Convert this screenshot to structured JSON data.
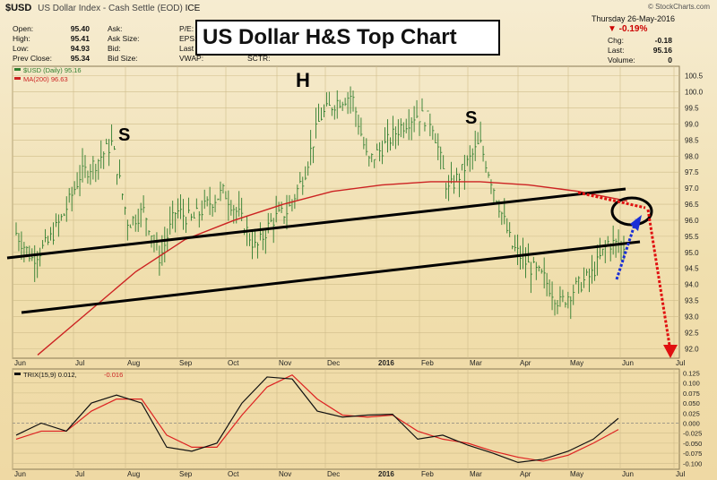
{
  "header": {
    "symbol": "$USD",
    "name": "US Dollar Index - Cash Settle (EOD)",
    "exchange": "ICE",
    "watermark": "© StockCharts.com",
    "date": "Thursday 26-May-2016",
    "change_pct": "▼ -0.19%",
    "quote_left": [
      {
        "label": "Open:",
        "value": "95.40"
      },
      {
        "label": "High:",
        "value": "95.41"
      },
      {
        "label": "Low:",
        "value": "94.93"
      },
      {
        "label": "Prev Close:",
        "value": "95.34"
      }
    ],
    "quote_mid": [
      "Ask:",
      "Ask Size:",
      "Bid:",
      "Bid Size:"
    ],
    "quote_mid2": [
      "P/E:",
      "EPS:",
      "Last",
      "VWAP:"
    ],
    "quote_mid3": [
      "",
      "",
      "",
      "SCTR:"
    ],
    "quote_right": [
      {
        "label": "Chg:",
        "value": "-0.18"
      },
      {
        "label": "Last:",
        "value": "95.16"
      },
      {
        "label": "Volume:",
        "value": "0"
      }
    ],
    "colors": {
      "up": "#1f7a1f",
      "down": "#cc0000",
      "accent": "#cc0000"
    }
  },
  "chart_data": [
    {
      "type": "line",
      "title": "US Dollar H&S Top Chart",
      "legend": [
        {
          "name": "$USD (Daily) 95.16",
          "color": "#2e7d2e"
        },
        {
          "name": "MA(200) 96.63",
          "color": "#cc2222"
        }
      ],
      "x_tick_labels": [
        "Jun",
        "Jul",
        "Aug",
        "Sep",
        "Oct",
        "Nov",
        "Dec",
        "2016",
        "Feb",
        "Mar",
        "Apr",
        "May",
        "Jun",
        "Jul"
      ],
      "y_tick_labels": [
        "92.0",
        "92.5",
        "93.0",
        "93.5",
        "94.0",
        "94.5",
        "95.0",
        "95.5",
        "96.0",
        "96.5",
        "97.0",
        "97.5",
        "98.0",
        "98.5",
        "99.0",
        "99.5",
        "100.0",
        "100.5"
      ],
      "ylim": [
        91.7,
        100.8
      ],
      "x_months": [
        "2015-06",
        "2015-07",
        "2015-08",
        "2015-09",
        "2015-10",
        "2015-11",
        "2015-12",
        "2016-01",
        "2016-02",
        "2016-03",
        "2016-04",
        "2016-05",
        "2016-06"
      ],
      "price_close_approx": [
        95.6,
        94.8,
        95.3,
        96.2,
        97.4,
        97.8,
        98.4,
        95.9,
        96.3,
        94.8,
        96.3,
        96.0,
        96.5,
        96.9,
        96.1,
        95.1,
        96.0,
        96.3,
        97.4,
        99.2,
        99.7,
        99.9,
        97.8,
        98.3,
        98.9,
        99.3,
        99.1,
        96.9,
        97.6,
        98.4,
        96.8,
        95.2,
        94.6,
        94.2,
        93.4,
        93.9,
        94.3,
        95.3,
        95.2
      ],
      "ma200_approx": [
        91.8,
        93.1,
        94.4,
        95.4,
        96.0,
        96.5,
        96.9,
        97.1,
        97.2,
        97.2,
        97.1,
        96.9,
        96.6
      ],
      "annotations": [
        "S",
        "H",
        "S"
      ],
      "grid": true
    },
    {
      "type": "line",
      "legend": [
        {
          "name": "TRIX(15,9) 0.012,",
          "color": "#111111"
        },
        {
          "name": "-0.016",
          "color": "#cc2222"
        }
      ],
      "y_tick_labels": [
        "0.125",
        "0.100",
        "0.075",
        "0.050",
        "0.025",
        "0.000",
        "-0.025",
        "-0.050",
        "-0.075",
        "-0.100"
      ],
      "ylim": [
        -0.115,
        0.135
      ],
      "trix_approx": [
        -0.03,
        0.0,
        -0.02,
        0.05,
        0.07,
        0.05,
        -0.06,
        -0.07,
        -0.05,
        0.05,
        0.115,
        0.11,
        0.03,
        0.015,
        0.02,
        0.022,
        -0.04,
        -0.03,
        -0.055,
        -0.075,
        -0.098,
        -0.09,
        -0.07,
        -0.04,
        0.012
      ],
      "signal_approx": [
        -0.04,
        -0.02,
        -0.02,
        0.03,
        0.06,
        0.06,
        -0.03,
        -0.06,
        -0.06,
        0.02,
        0.09,
        0.12,
        0.06,
        0.02,
        0.015,
        0.02,
        -0.02,
        -0.04,
        -0.05,
        -0.07,
        -0.085,
        -0.095,
        -0.08,
        -0.05,
        -0.016
      ],
      "x_tick_labels": [
        "Jun",
        "Jul",
        "Aug",
        "Sep",
        "Oct",
        "Nov",
        "Dec",
        "2016",
        "Feb",
        "Mar",
        "Apr",
        "May",
        "Jun",
        "Jul"
      ],
      "grid": true
    }
  ]
}
